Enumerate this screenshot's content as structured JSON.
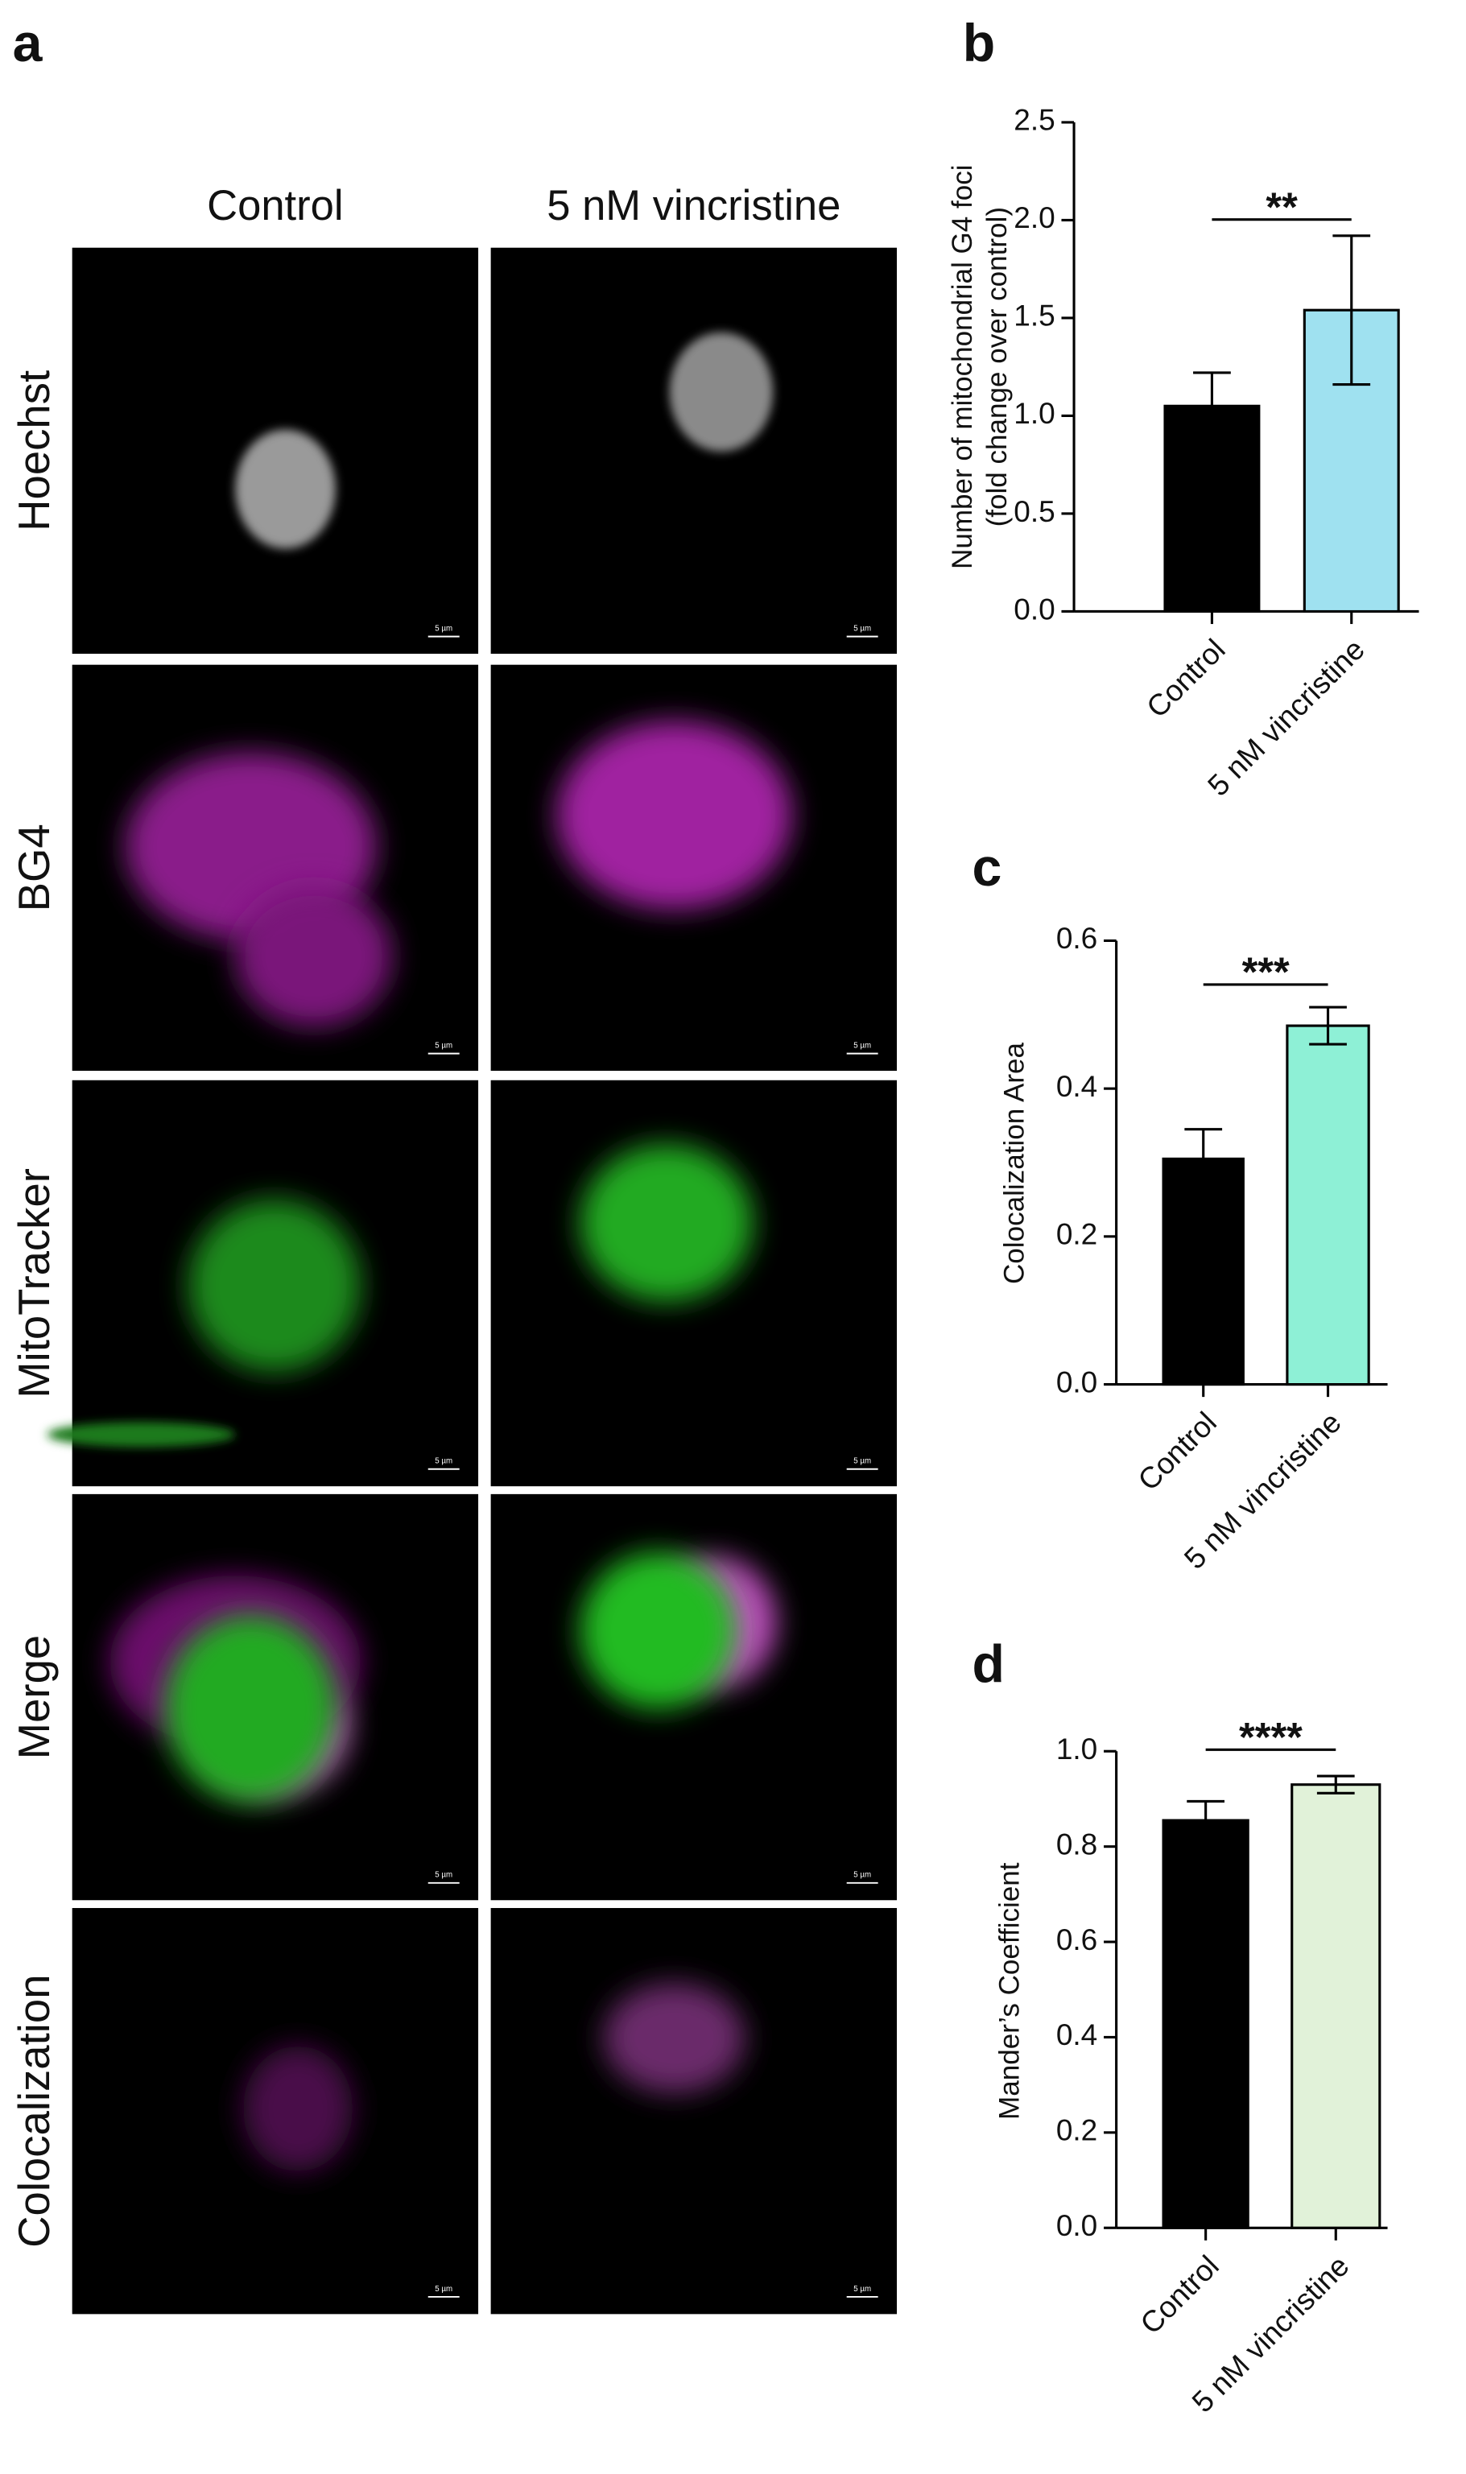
{
  "panel_a": {
    "label": "a",
    "columns": [
      "Control",
      "5 nM vincristine"
    ],
    "rows": [
      "Hoechst",
      "BG4",
      "MitoTracker",
      "Merge",
      "Colocalization"
    ],
    "scale_bar": "5 µm"
  },
  "chart_data": [
    {
      "type": "bar",
      "panel": "b",
      "ylabel": [
        "Number of mitochondrial G4 foci",
        "(fold change over control)"
      ],
      "categories": [
        "Control",
        "5 nM vincristine"
      ],
      "values": [
        1.05,
        1.54
      ],
      "errors": [
        0.17,
        0.38
      ],
      "colors": [
        "#000000",
        "#9fe1f0"
      ],
      "ylim": [
        0,
        2.5
      ],
      "yticks": [
        {
          "value": 0,
          "label": "0.0"
        },
        0.5,
        {
          "value": 1,
          "label": "1.0"
        },
        1.5,
        {
          "value": 2,
          "label": "2.0"
        },
        2.5
      ],
      "annotation": "**"
    },
    {
      "type": "bar",
      "panel": "c",
      "ylabel": [
        "Colocalization Area"
      ],
      "categories": [
        "Control",
        "5 nM vincristine"
      ],
      "values": [
        0.305,
        0.485
      ],
      "errors": [
        0.04,
        0.025
      ],
      "colors": [
        "#000000",
        "#8ef0d6"
      ],
      "ylim": [
        0,
        0.6
      ],
      "yticks": [
        {
          "value": 0,
          "label": "0.0"
        },
        0.2,
        0.4,
        0.6
      ],
      "annotation": "***"
    },
    {
      "type": "bar",
      "panel": "d",
      "ylabel": [
        "Mander’s Coefficient"
      ],
      "categories": [
        "Control",
        "5 nM vincristine"
      ],
      "values": [
        0.855,
        0.93
      ],
      "errors": [
        0.04,
        0.018
      ],
      "colors": [
        "#000000",
        "#e1f2d9"
      ],
      "ylim": [
        0,
        1
      ],
      "yticks": [
        {
          "value": 0,
          "label": "0.0"
        },
        0.2,
        0.4,
        0.6,
        0.8,
        {
          "value": 1,
          "label": "1.0"
        }
      ],
      "annotation": "****"
    }
  ]
}
